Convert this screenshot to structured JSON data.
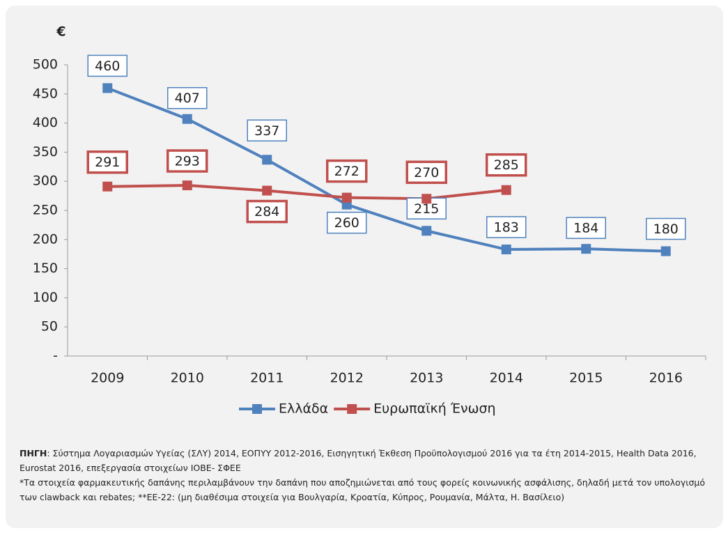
{
  "chart_data": {
    "type": "line",
    "y_label": "€",
    "categories": [
      "2009",
      "2010",
      "2011",
      "2012",
      "2013",
      "2014",
      "2015",
      "2016"
    ],
    "series": [
      {
        "name": "Ελλάδα",
        "color": "#4f81bd",
        "values": [
          460,
          407,
          337,
          260,
          215,
          183,
          184,
          180
        ]
      },
      {
        "name": "Ευρωπαϊκή Ένωση",
        "color": "#c0504d",
        "values": [
          291,
          293,
          284,
          272,
          270,
          285,
          null,
          null
        ]
      }
    ],
    "ylim": [
      0,
      500
    ],
    "yticks": [
      {
        "value": 0,
        "label": "-"
      },
      50,
      100,
      150,
      200,
      250,
      300,
      350,
      400,
      450,
      500
    ],
    "legend": "bottom"
  },
  "footnote": {
    "source_label": "ΠΗΓΗ",
    "source_text": ": Σύστημα Λογαριασμών Υγείας (ΣΛΥ) 2014, ΕΟΠΥΥ 2012-2016, Εισηγητική Έκθεση Προϋπολογισμού 2016 για τα έτη 2014-2015, Health Data 2016, Eurostat 2016, επεξεργασία στοιχείων ΙΟΒΕ- ΣΦΕΕ",
    "note": "*Τα στοιχεία φαρμακευτικής δαπάνης περιλαμβάνουν την δαπάνη που αποζημιώνεται από τους φορείς κοινωνικής ασφάλισης, δηλαδή μετά τον υπολογισμό των clawback και rebates; **ΕΕ-22: (μη διαθέσιμα στοιχεία για Βουλγαρία, Κροατία, Κύπρος, Ρουμανία, Μάλτα, Η. Βασίλειο)"
  }
}
